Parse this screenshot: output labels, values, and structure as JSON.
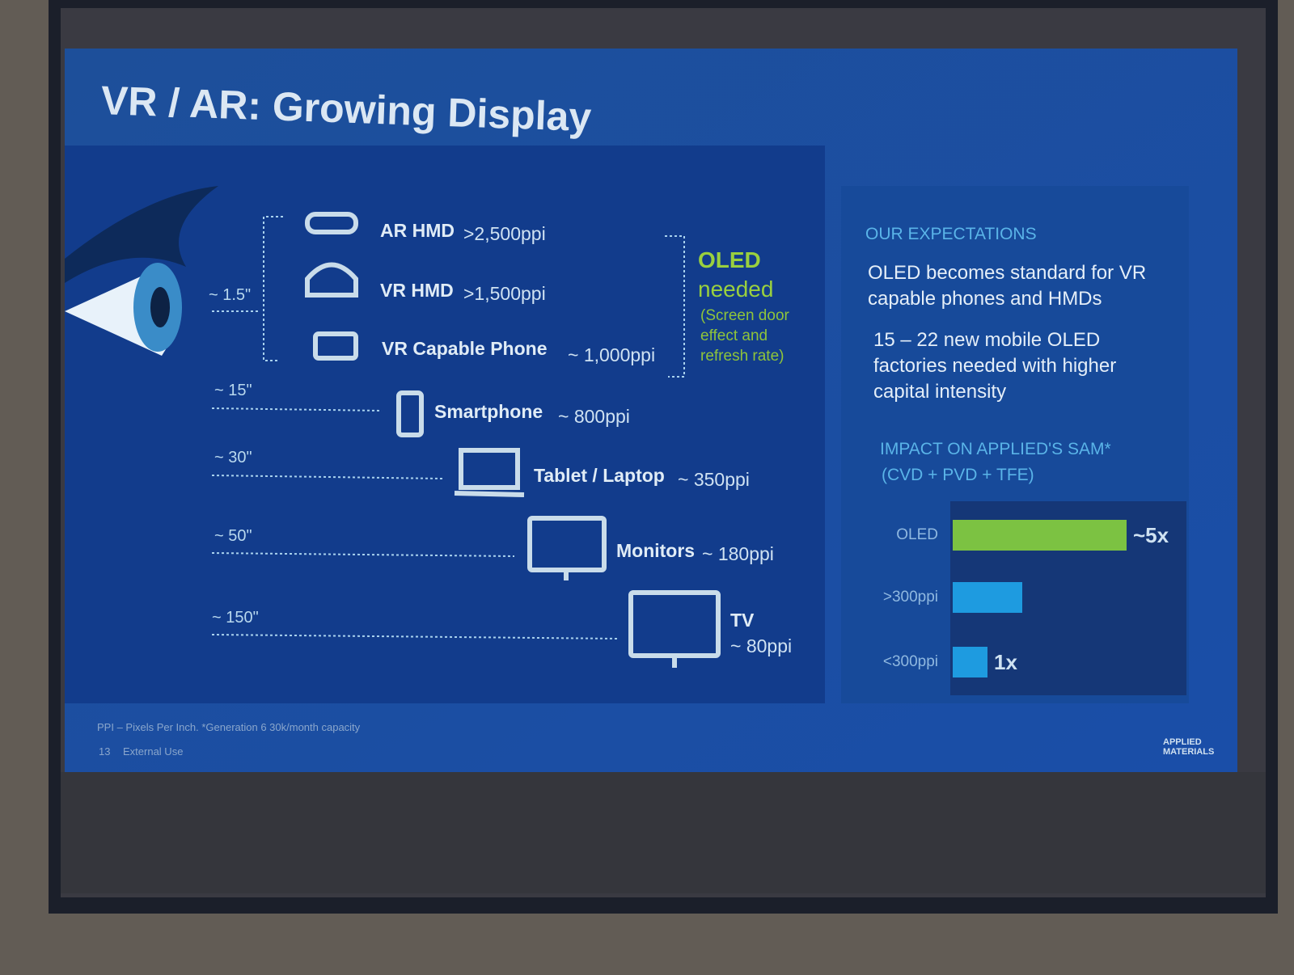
{
  "title": "VR / AR:  Growing Display",
  "devices": [
    {
      "name": "AR HMD",
      "ppi": ">2,500ppi"
    },
    {
      "name": "VR HMD",
      "ppi": ">1,500ppi"
    },
    {
      "name": "VR Capable  Phone",
      "ppi": "~ 1,000ppi"
    },
    {
      "name": "Smartphone",
      "ppi": "~ 800ppi"
    },
    {
      "name": "Tablet / Laptop",
      "ppi": "~ 350ppi"
    },
    {
      "name": "Monitors",
      "ppi": "~ 180ppi"
    },
    {
      "name": "TV",
      "ppi": "~ 80ppi"
    }
  ],
  "distances": [
    "~ 1.5\"",
    "~ 15\"",
    "~ 30\"",
    "~ 50\"",
    "~ 150\""
  ],
  "oled_note": {
    "title": "OLED",
    "subtitle": "needed",
    "detail": "(Screen door effect and refresh rate)"
  },
  "expectations": {
    "heading": "OUR  EXPECTATIONS",
    "points": [
      "OLED becomes standard for VR capable phones and HMDs",
      "15 – 22 new mobile OLED factories needed with higher capital intensity"
    ]
  },
  "impact": {
    "heading": "IMPACT ON APPLIED'S SAM*",
    "subheading": "(CVD + PVD + TFE)",
    "bars": [
      {
        "label": "OLED",
        "value": 5,
        "value_label": "~5x",
        "color": "#7cc242"
      },
      {
        "label": ">300ppi",
        "value": 2,
        "color": "#1e9be0"
      },
      {
        "label": "<300ppi",
        "value": 1,
        "value_label": "1x",
        "color": "#1e9be0"
      }
    ]
  },
  "footer": {
    "note": "PPI – Pixels Per Inch. *Generation 6 30k/month capacity",
    "page": "13",
    "usage": "External Use",
    "logo": "APPLIED MATERIALS"
  }
}
